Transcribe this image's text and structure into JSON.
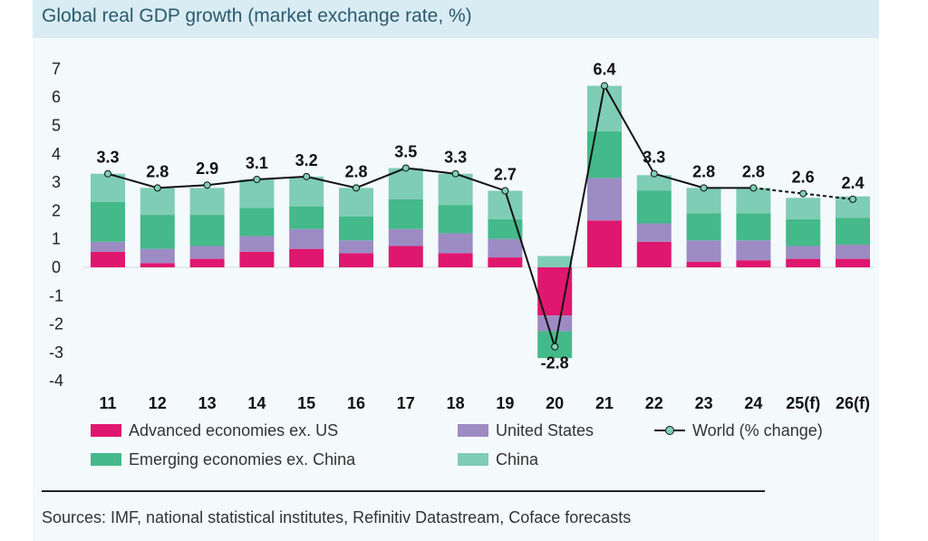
{
  "title": "Global real GDP growth (market exchange rate, %)",
  "source": "Sources: IMF, national statistical institutes, Refinitiv Datastream, Coface forecasts",
  "colors": {
    "advanced": "#e0176e",
    "us": "#9d8bc4",
    "emerging": "#44b98a",
    "china": "#7fcdb4",
    "world_line": "#111111",
    "world_marker": "#7fd1b5"
  },
  "legend": [
    {
      "key": "advanced",
      "label": "Advanced economies ex. US"
    },
    {
      "key": "us",
      "label": "United States"
    },
    {
      "key": "world",
      "label": "World (% change)"
    },
    {
      "key": "emerging",
      "label": "Emerging economies ex. China"
    },
    {
      "key": "china",
      "label": "China"
    }
  ],
  "chart_data": {
    "type": "bar",
    "stacked": true,
    "title": "Global real GDP growth (market exchange rate, %)",
    "categories": [
      "11",
      "12",
      "13",
      "14",
      "15",
      "16",
      "17",
      "18",
      "19",
      "20",
      "21",
      "22",
      "23",
      "24",
      "25(f)",
      "26(f)"
    ],
    "ylim": [
      -4,
      7
    ],
    "yticks": [
      7,
      6,
      5,
      4,
      3,
      2,
      1,
      0,
      -1,
      -2,
      -3,
      -4
    ],
    "series": [
      {
        "name": "Advanced economies ex. US",
        "key": "advanced",
        "values": [
          0.55,
          0.15,
          0.3,
          0.55,
          0.65,
          0.5,
          0.75,
          0.5,
          0.35,
          -1.7,
          1.65,
          0.9,
          0.2,
          0.25,
          0.3,
          0.3
        ]
      },
      {
        "name": "United States",
        "key": "us",
        "values": [
          0.35,
          0.5,
          0.45,
          0.55,
          0.7,
          0.45,
          0.6,
          0.7,
          0.65,
          -0.55,
          1.5,
          0.65,
          0.75,
          0.7,
          0.45,
          0.5
        ]
      },
      {
        "name": "Emerging economies ex. China",
        "key": "emerging",
        "values": [
          1.4,
          1.2,
          1.1,
          1.0,
          0.8,
          0.85,
          1.05,
          1.0,
          0.7,
          -0.95,
          1.65,
          1.15,
          0.95,
          0.95,
          0.95,
          0.95
        ]
      },
      {
        "name": "China",
        "key": "china",
        "values": [
          1.0,
          0.95,
          0.95,
          1.0,
          1.05,
          1.0,
          1.1,
          1.1,
          1.0,
          0.4,
          1.6,
          0.55,
          0.9,
          0.9,
          0.75,
          0.75
        ]
      }
    ],
    "line": {
      "name": "World (% change)",
      "values": [
        3.3,
        2.8,
        2.9,
        3.1,
        3.2,
        2.8,
        3.5,
        3.3,
        2.7,
        -2.8,
        6.4,
        3.3,
        2.8,
        2.8,
        2.6,
        2.4
      ],
      "labels": [
        "3.3",
        "2.8",
        "2.9",
        "3.1",
        "3.2",
        "2.8",
        "3.5",
        "3.3",
        "2.7",
        "-2.8",
        "6.4",
        "3.3",
        "2.8",
        "2.8",
        "2.6",
        "2.4"
      ],
      "forecast_from_index": 14
    }
  }
}
